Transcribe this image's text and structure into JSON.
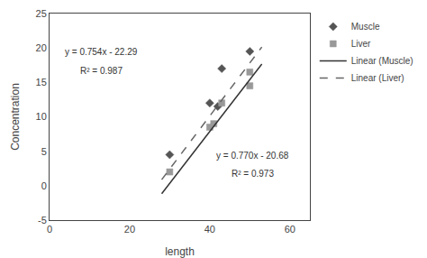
{
  "chart_data": {
    "type": "scatter",
    "xlabel": "length",
    "ylabel": "Concentration",
    "series": [
      {
        "name": "Muscle",
        "type": "scatter",
        "marker": "diamond",
        "color": "#555555",
        "x": [
          30,
          40,
          42,
          43,
          50
        ],
        "values": [
          4.5,
          12.0,
          11.5,
          17.0,
          19.5
        ]
      },
      {
        "name": "Liver",
        "type": "scatter",
        "marker": "square",
        "color": "#999999",
        "x": [
          30,
          40,
          41,
          43,
          50,
          50
        ],
        "values": [
          2.0,
          8.5,
          9.0,
          12.0,
          16.5,
          14.5
        ]
      },
      {
        "name": "Linear (Muscle)",
        "type": "line",
        "line_style": "solid",
        "color": "#333333",
        "x": [
          28,
          53
        ],
        "values": [
          -1.178,
          17.672
        ]
      },
      {
        "name": "Linear (Liver)",
        "type": "line",
        "line_style": "dash",
        "color": "#666666",
        "x": [
          28,
          53
        ],
        "values": [
          0.88,
          20.13
        ]
      }
    ],
    "annotations": [
      "y = 0.754x - 22.29",
      "R² = 0.987",
      "y = 0.770x - 20.68",
      "R² = 0.973"
    ],
    "xlim": [
      0,
      65
    ],
    "xticks": [
      0,
      20,
      40,
      60
    ],
    "ylim": [
      -5,
      25
    ],
    "yticks": [
      -5,
      0,
      5,
      10,
      15,
      20,
      25
    ],
    "grid": false,
    "legend": "right"
  }
}
